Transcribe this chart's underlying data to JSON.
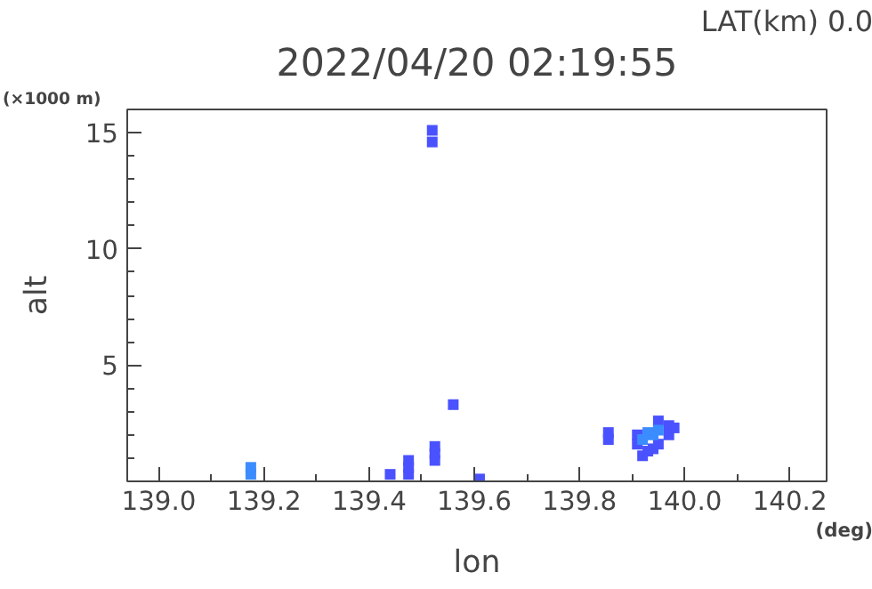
{
  "chart_data": {
    "type": "scatter",
    "title": "2022/04/20 02:19:55",
    "xlabel": "lon",
    "ylabel": "alt",
    "annotations": [
      "LAT(km) 0.0",
      "(×1000 m)",
      "(deg)"
    ],
    "xlim": [
      138.94,
      140.27
    ],
    "ylim": [
      0,
      16
    ],
    "xticks": [
      {
        "value": 139.0,
        "label": "139.0"
      },
      {
        "value": 139.1,
        "label": null
      },
      {
        "value": 139.2,
        "label": "139.2"
      },
      {
        "value": 139.3,
        "label": null
      },
      {
        "value": 139.4,
        "label": "139.4"
      },
      {
        "value": 139.5,
        "label": null
      },
      {
        "value": 139.6,
        "label": "139.6"
      },
      {
        "value": 139.7,
        "label": null
      },
      {
        "value": 139.8,
        "label": "139.8"
      },
      {
        "value": 139.9,
        "label": null
      },
      {
        "value": 140.0,
        "label": "140.0"
      },
      {
        "value": 140.1,
        "label": null
      },
      {
        "value": 140.2,
        "label": "140.2"
      }
    ],
    "yticks": [
      {
        "value": 1,
        "label": null
      },
      {
        "value": 2,
        "label": null
      },
      {
        "value": 3,
        "label": null
      },
      {
        "value": 4,
        "label": null
      },
      5,
      {
        "value": 6,
        "label": null
      },
      {
        "value": 7,
        "label": null
      },
      {
        "value": 8,
        "label": null
      },
      {
        "value": 9,
        "label": null
      },
      10,
      {
        "value": 11,
        "label": null
      },
      {
        "value": 12,
        "label": null
      },
      {
        "value": 13,
        "label": null
      },
      {
        "value": 14,
        "label": null
      },
      15
    ],
    "grid": false,
    "marker": "square",
    "series": [
      {
        "color": "#4a52ff",
        "x": [
          139.475,
          139.475,
          139.475,
          139.52,
          139.52,
          139.525,
          139.525,
          139.525,
          139.56,
          139.61,
          139.44,
          139.855,
          139.855,
          139.91,
          139.91,
          139.92,
          139.93,
          139.94,
          139.95,
          139.95,
          139.97,
          139.97,
          139.98
        ],
        "values": [
          0.3,
          0.6,
          0.9,
          14.6,
          15.1,
          0.9,
          1.2,
          1.5,
          3.3,
          0.1,
          0.3,
          1.8,
          2.1,
          1.6,
          2.0,
          1.1,
          1.3,
          1.4,
          1.6,
          2.6,
          2.0,
          2.4,
          2.3
        ]
      },
      {
        "color": "#3b8dff",
        "x": [
          139.175,
          139.175,
          139.92,
          139.93,
          139.94,
          139.95
        ],
        "values": [
          0.3,
          0.6,
          1.8,
          2.1,
          2.0,
          2.2
        ]
      }
    ]
  }
}
